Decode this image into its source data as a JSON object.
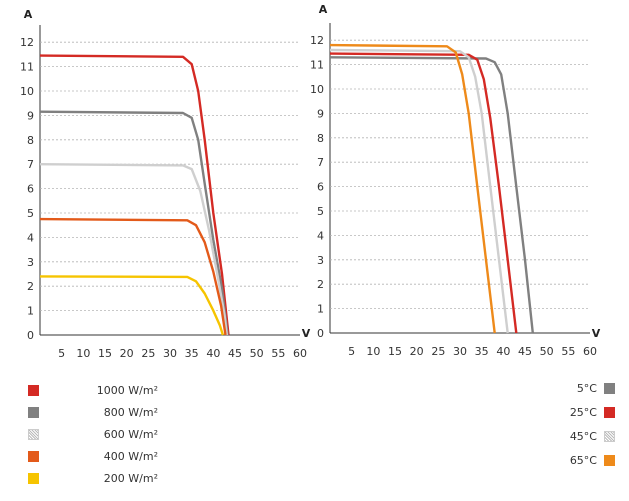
{
  "chart_data": [
    {
      "type": "line",
      "title": "",
      "xlabel": "V",
      "ylabel": "A",
      "xlim": [
        0,
        60
      ],
      "ylim": [
        0,
        12.5
      ],
      "x_ticks": [
        "5",
        "10",
        "15",
        "20",
        "25",
        "30",
        "35",
        "40",
        "45",
        "50",
        "55",
        "60"
      ],
      "y_ticks": [
        "0",
        "1",
        "2",
        "3",
        "4",
        "5",
        "6",
        "7",
        "8",
        "9",
        "10",
        "11",
        "12"
      ],
      "grid": "horizontal dashed",
      "series": [
        {
          "name": "1000 W/m²",
          "color": "#d42a24",
          "values": [
            [
              0,
              11.45
            ],
            [
              33,
              11.4
            ],
            [
              35,
              11.1
            ],
            [
              36.5,
              10
            ],
            [
              38,
              8
            ],
            [
              40,
              5
            ],
            [
              42,
              2.5
            ],
            [
              43.5,
              0
            ]
          ]
        },
        {
          "name": "800 W/m²",
          "color": "#808080",
          "values": [
            [
              0,
              9.15
            ],
            [
              33,
              9.1
            ],
            [
              35,
              8.9
            ],
            [
              36.5,
              8
            ],
            [
              38,
              6.2
            ],
            [
              40,
              3.9
            ],
            [
              42,
              1.9
            ],
            [
              43.3,
              0
            ]
          ]
        },
        {
          "name": "600 W/m²",
          "color": "#cfcfcf",
          "values": [
            [
              0,
              7
            ],
            [
              33,
              6.95
            ],
            [
              35,
              6.8
            ],
            [
              37,
              5.9
            ],
            [
              39,
              4.3
            ],
            [
              41,
              2.4
            ],
            [
              42.6,
              0.8
            ],
            [
              43.1,
              0
            ]
          ]
        },
        {
          "name": "400 W/m²",
          "color": "#e35a1a",
          "values": [
            [
              0,
              4.75
            ],
            [
              34,
              4.7
            ],
            [
              36,
              4.5
            ],
            [
              38,
              3.8
            ],
            [
              40,
              2.6
            ],
            [
              41.8,
              1.2
            ],
            [
              42.8,
              0
            ]
          ]
        },
        {
          "name": "200 W/m²",
          "color": "#f6c400",
          "values": [
            [
              0,
              2.4
            ],
            [
              34,
              2.38
            ],
            [
              36,
              2.2
            ],
            [
              38,
              1.7
            ],
            [
              40,
              1.0
            ],
            [
              41.5,
              0.4
            ],
            [
              42.2,
              0
            ]
          ]
        }
      ]
    },
    {
      "type": "line",
      "title": "",
      "xlabel": "V",
      "ylabel": "A",
      "xlim": [
        0,
        60
      ],
      "ylim": [
        0,
        12.5
      ],
      "x_ticks": [
        "5",
        "10",
        "15",
        "20",
        "25",
        "30",
        "35",
        "40",
        "45",
        "50",
        "55",
        "60"
      ],
      "y_ticks": [
        "0",
        "1",
        "2",
        "3",
        "4",
        "5",
        "6",
        "7",
        "8",
        "9",
        "10",
        "11",
        "12"
      ],
      "grid": "horizontal dashed",
      "series": [
        {
          "name": "5°C",
          "color": "#808080",
          "values": [
            [
              0,
              11.3
            ],
            [
              36,
              11.25
            ],
            [
              38,
              11.1
            ],
            [
              39.5,
              10.6
            ],
            [
              41,
              9
            ],
            [
              43,
              6
            ],
            [
              45,
              3
            ],
            [
              46.8,
              0
            ]
          ]
        },
        {
          "name": "25°C",
          "color": "#d42a24",
          "values": [
            [
              0,
              11.45
            ],
            [
              32,
              11.4
            ],
            [
              34,
              11.2
            ],
            [
              35.5,
              10.4
            ],
            [
              37,
              8.8
            ],
            [
              39,
              6
            ],
            [
              41,
              3
            ],
            [
              43,
              0
            ]
          ]
        },
        {
          "name": "45°C",
          "color": "#cfcfcf",
          "values": [
            [
              0,
              11.6
            ],
            [
              30,
              11.55
            ],
            [
              32,
              11.3
            ],
            [
              33.5,
              10.5
            ],
            [
              35,
              9
            ],
            [
              37,
              6
            ],
            [
              39,
              3
            ],
            [
              41,
              0
            ]
          ]
        },
        {
          "name": "65°C",
          "color": "#ee8a1a",
          "values": [
            [
              0,
              11.8
            ],
            [
              27,
              11.75
            ],
            [
              29,
              11.5
            ],
            [
              30.5,
              10.6
            ],
            [
              32,
              9
            ],
            [
              34,
              6
            ],
            [
              36,
              3
            ],
            [
              38,
              0
            ]
          ]
        }
      ]
    }
  ],
  "legend_left": [
    {
      "label": "1000 W/m²",
      "color": "#d42a24"
    },
    {
      "label": "800 W/m²",
      "color": "#808080"
    },
    {
      "label": "600 W/m²",
      "color": "#e6e6e6",
      "pattern": true
    },
    {
      "label": "400 W/m²",
      "color": "#e35a1a"
    },
    {
      "label": "200 W/m²",
      "color": "#f6c400"
    }
  ],
  "legend_right": [
    {
      "label": "5°C",
      "color": "#808080"
    },
    {
      "label": "25°C",
      "color": "#d42a24"
    },
    {
      "label": "45°C",
      "color": "#e6e6e6",
      "pattern": true
    },
    {
      "label": "65°C",
      "color": "#ee8a1a"
    }
  ]
}
